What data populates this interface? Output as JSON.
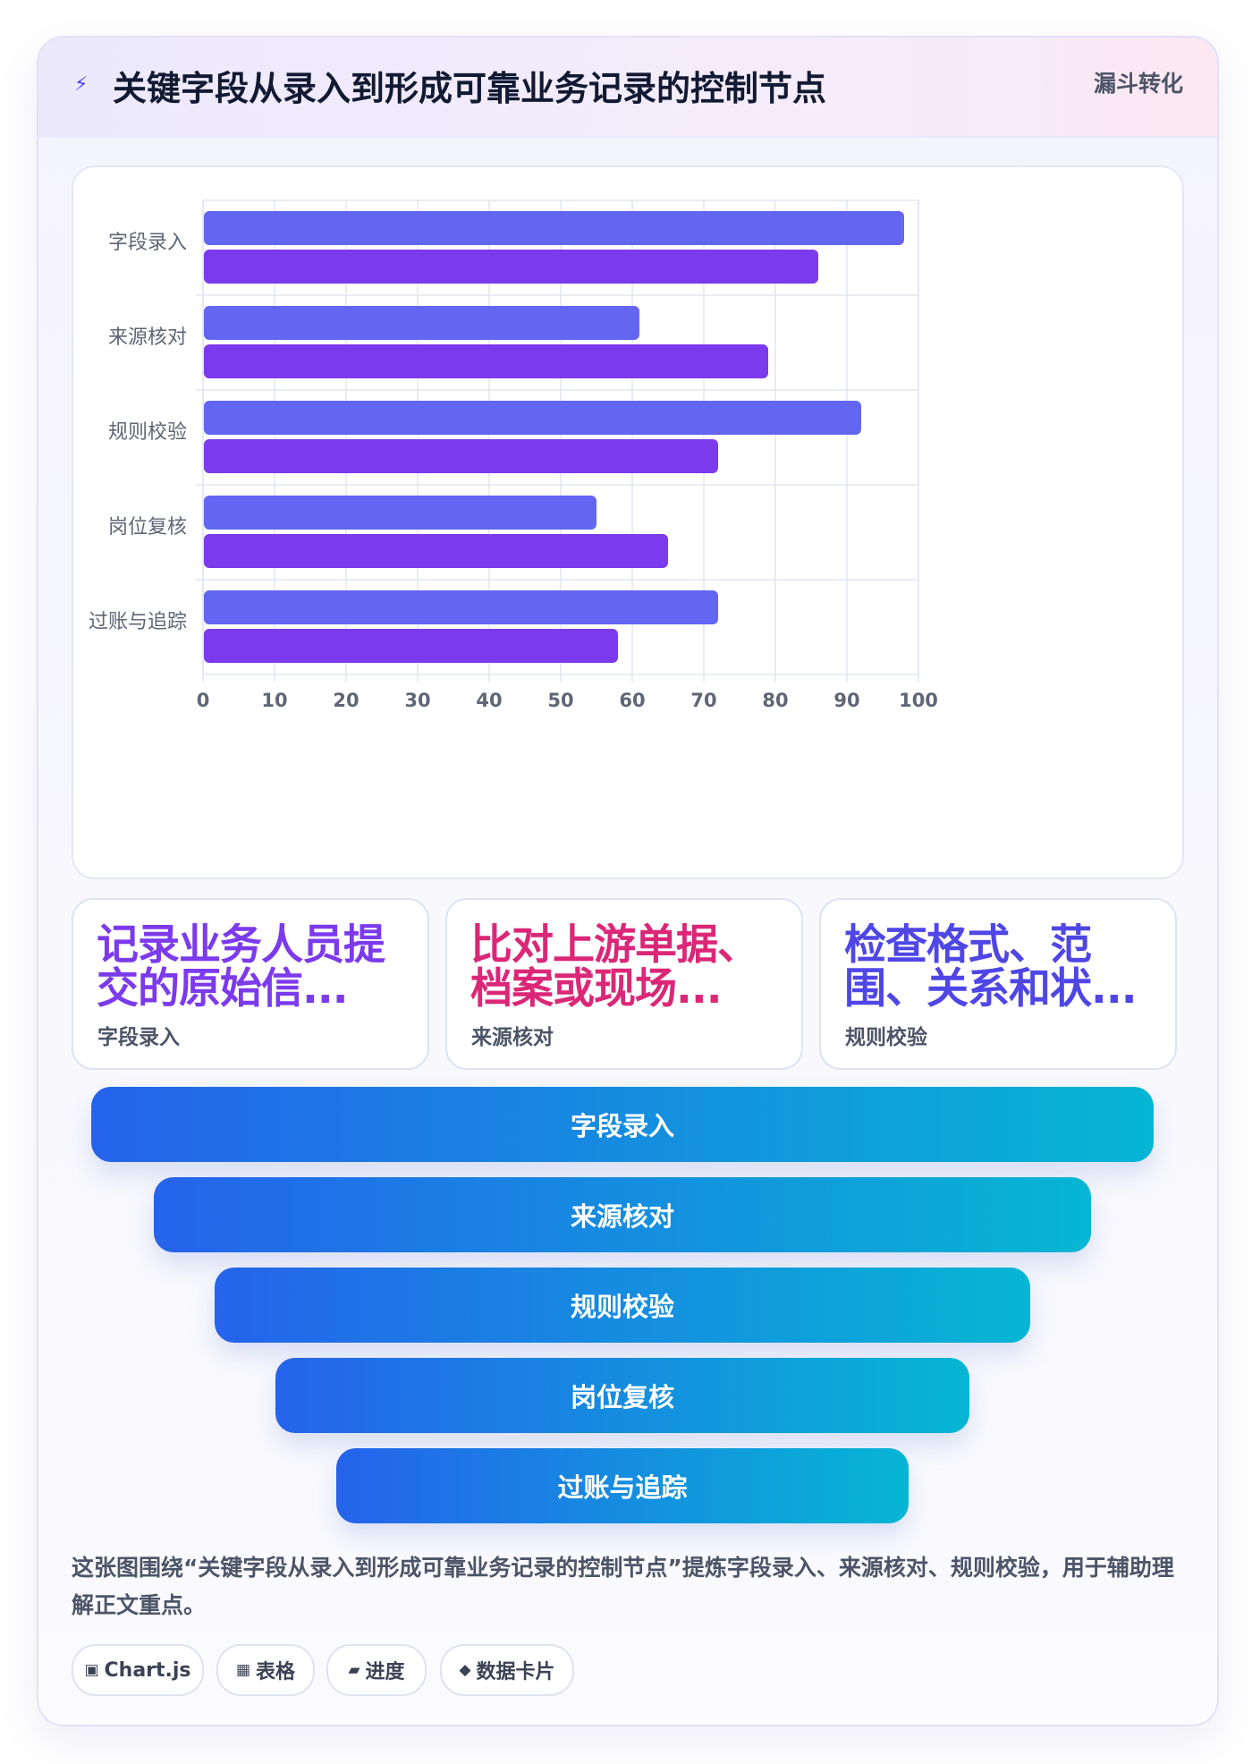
{
  "header": {
    "icon": "bolt-icon",
    "title": "关键字段从录入到形成可靠业务记录的控制节点",
    "tag": "漏斗转化"
  },
  "chart_data": {
    "type": "bar",
    "orientation": "horizontal",
    "categories": [
      "字段录入",
      "来源核对",
      "规则校验",
      "岗位复核",
      "过账与追踪"
    ],
    "series": [
      {
        "values": [
          98,
          61,
          92,
          55,
          72
        ],
        "color": "#6366f1"
      },
      {
        "values": [
          86,
          79,
          72,
          65,
          58
        ],
        "color": "#7c3aed"
      }
    ],
    "xlim": [
      0,
      100
    ],
    "xticks": [
      0,
      10,
      20,
      30,
      40,
      50,
      60,
      70,
      80,
      90,
      100
    ],
    "grid": true,
    "legend": "none"
  },
  "stats": [
    {
      "value": "记录业务人员提交的原始信...",
      "label": "字段录入",
      "color": "#7c3aed"
    },
    {
      "value": "比对上游单据、档案或现场...",
      "label": "来源核对",
      "color": "#db2777"
    },
    {
      "value": "检查格式、范围、关系和状...",
      "label": "规则校验",
      "color": "#4f46e5"
    }
  ],
  "funnel": [
    "字段录入",
    "来源核对",
    "规则校验",
    "岗位复核",
    "过账与追踪"
  ],
  "caption": "这张图围绕“关键字段从录入到形成可靠业务记录的控制节点”提炼字段录入、来源核对、规则校验，用于辅助理解正文重点。",
  "pills": [
    {
      "icon": "▣",
      "label": "Chart.js"
    },
    {
      "icon": "▦",
      "label": "表格"
    },
    {
      "icon": "▰",
      "label": "进度"
    },
    {
      "icon": "◆",
      "label": "数据卡片"
    }
  ]
}
